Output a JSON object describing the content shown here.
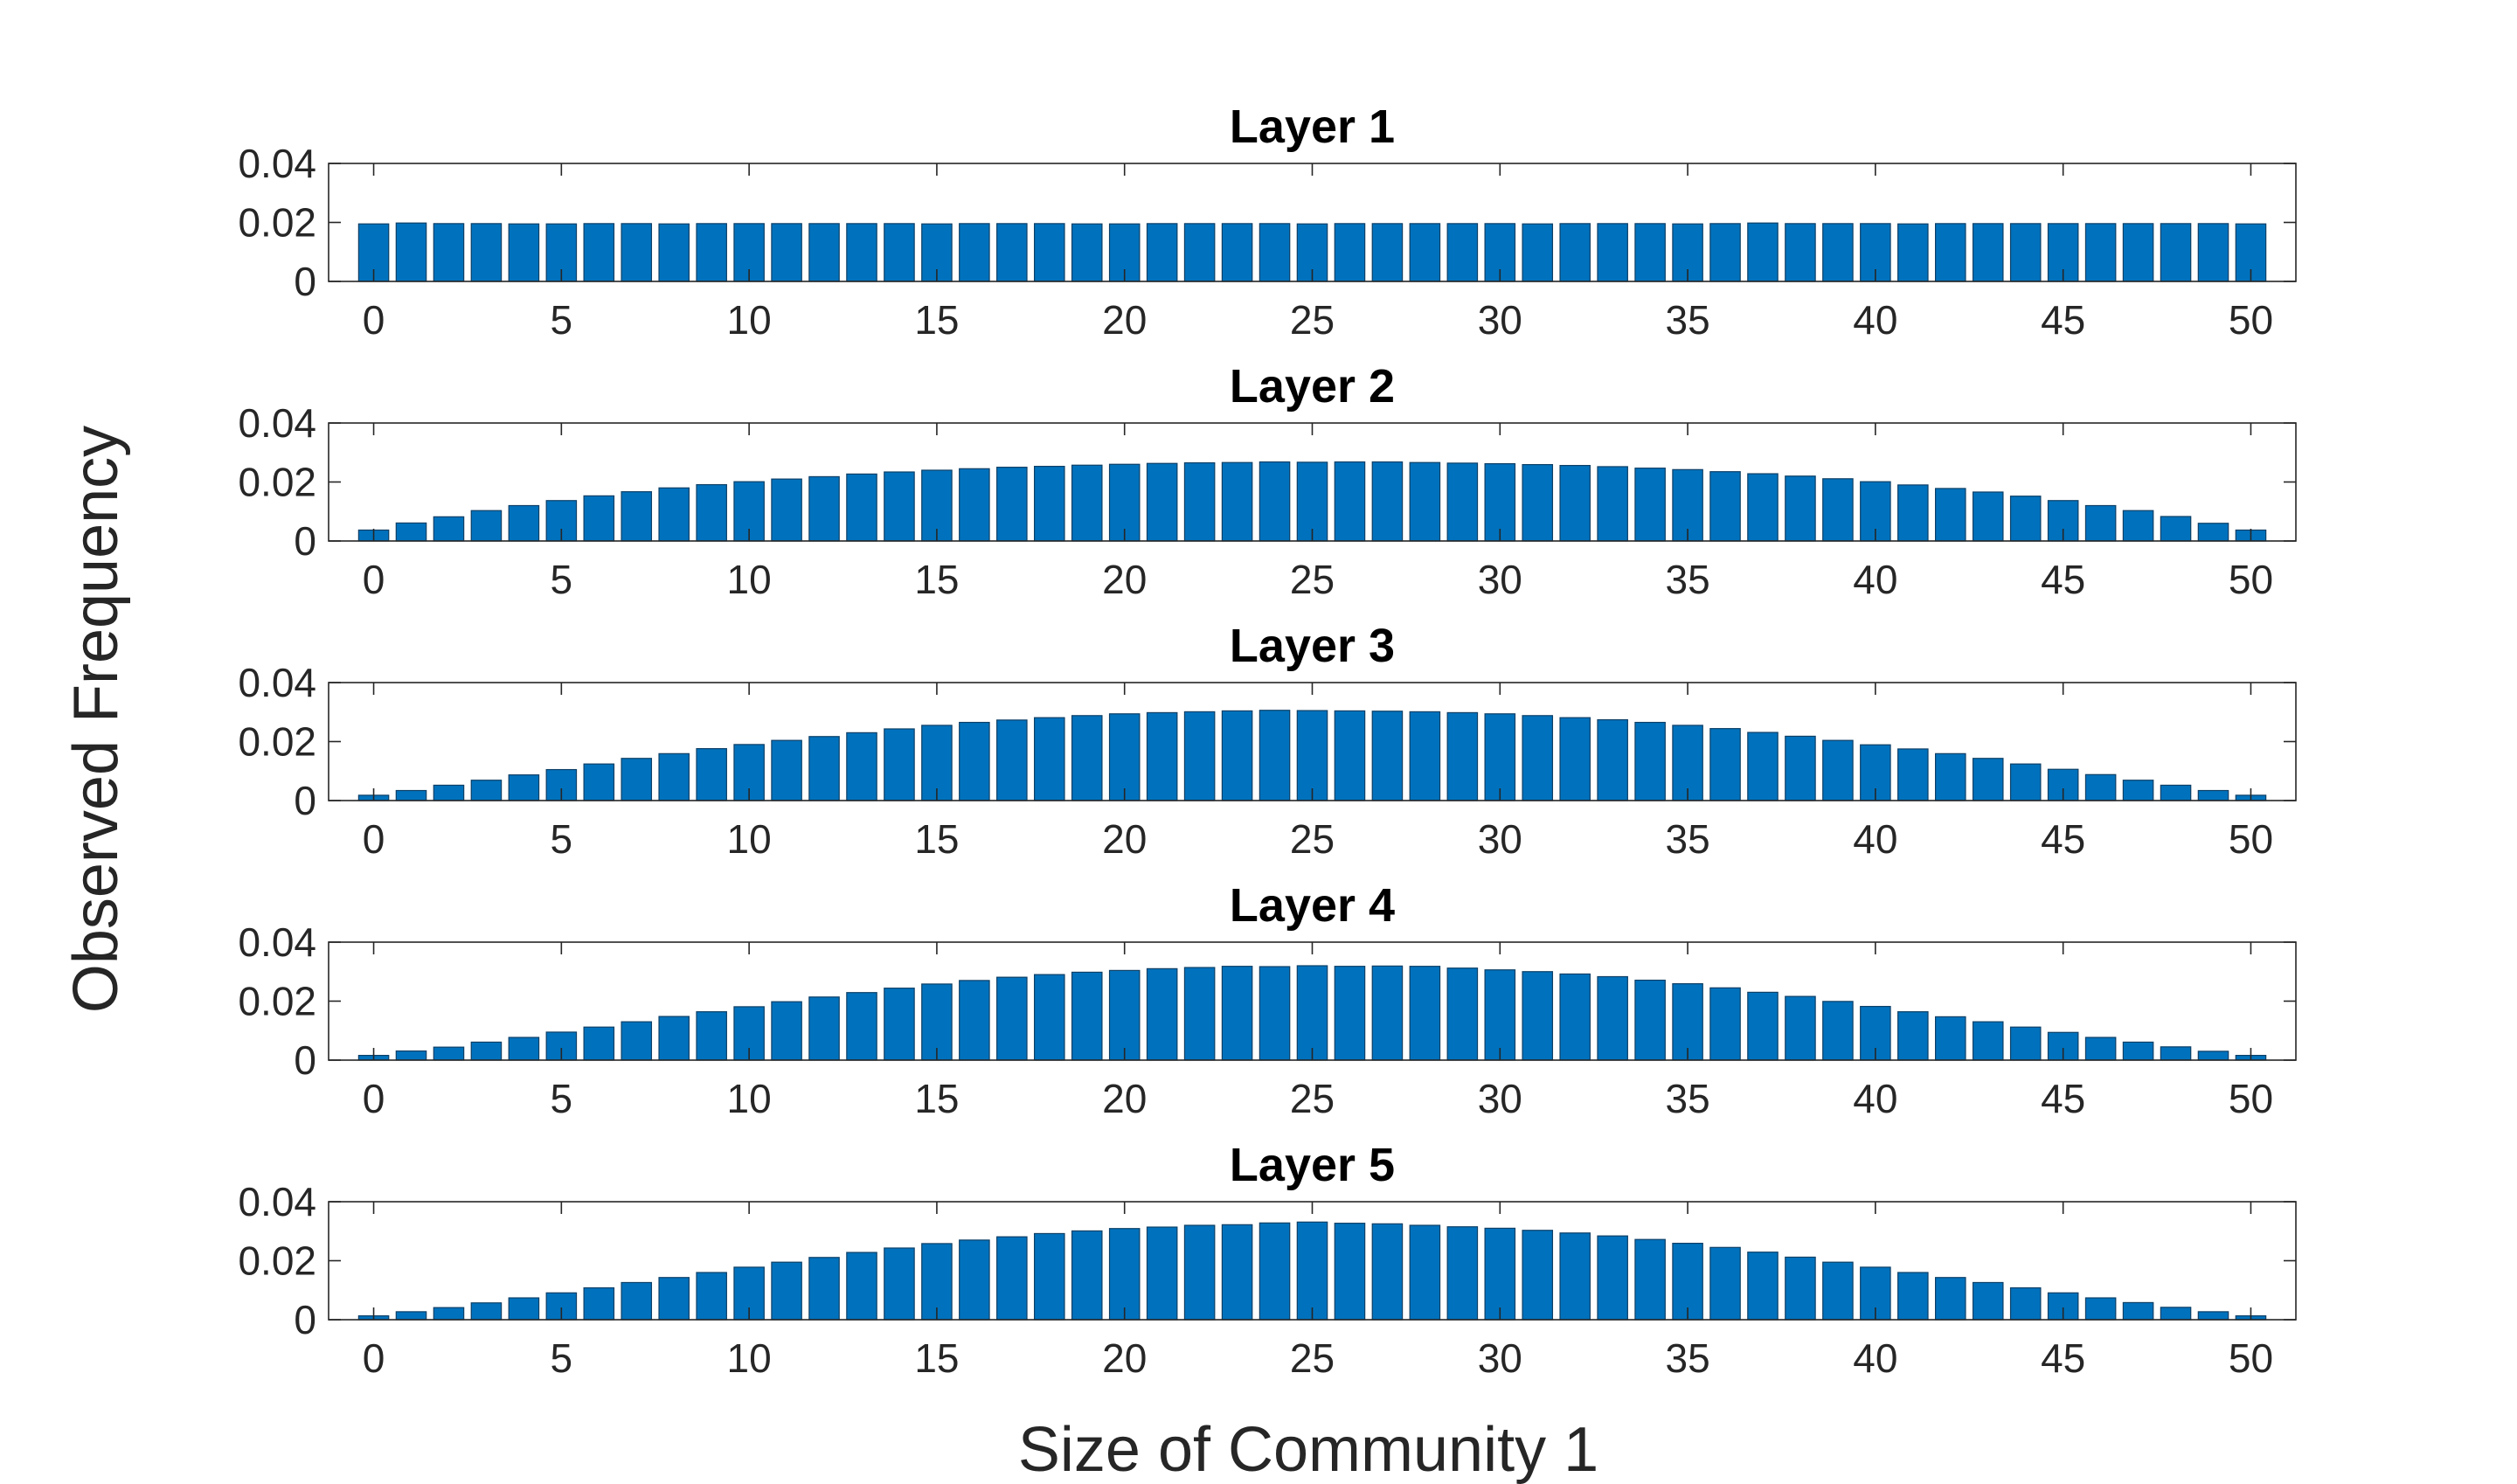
{
  "chart_data": {
    "type": "bar",
    "xlabel": "Size of Community 1",
    "ylabel": "Observed Frequency",
    "colors": {
      "bar": "#0072BD",
      "bar_edge": "#0d3f66",
      "axis": "#262626",
      "grid_tick": "#262626"
    },
    "xlim": [
      -1.2,
      51.2
    ],
    "ylim": [
      0,
      0.04
    ],
    "xticks": [
      0,
      5,
      10,
      15,
      20,
      25,
      30,
      35,
      40,
      45,
      50
    ],
    "yticks": [
      0,
      0.02,
      0.04
    ],
    "ytick_labels": [
      "0",
      "0.02",
      "0.04"
    ],
    "categories": [
      0,
      1,
      2,
      3,
      4,
      5,
      6,
      7,
      8,
      9,
      10,
      11,
      12,
      13,
      14,
      15,
      16,
      17,
      18,
      19,
      20,
      21,
      22,
      23,
      24,
      25,
      26,
      27,
      28,
      29,
      30,
      31,
      32,
      33,
      34,
      35,
      36,
      37,
      38,
      39,
      40,
      41,
      42,
      43,
      44,
      45,
      46,
      47,
      48,
      49,
      50
    ],
    "panels": [
      {
        "title": "Layer 1",
        "values": [
          0.0195,
          0.0198,
          0.0196,
          0.0196,
          0.0195,
          0.0195,
          0.0196,
          0.0196,
          0.0195,
          0.0196,
          0.0196,
          0.0196,
          0.0196,
          0.0196,
          0.0196,
          0.0195,
          0.0196,
          0.0196,
          0.0196,
          0.0195,
          0.0195,
          0.0196,
          0.0196,
          0.0196,
          0.0196,
          0.0195,
          0.0196,
          0.0196,
          0.0196,
          0.0196,
          0.0196,
          0.0195,
          0.0196,
          0.0196,
          0.0196,
          0.0195,
          0.0196,
          0.0198,
          0.0196,
          0.0196,
          0.0196,
          0.0195,
          0.0196,
          0.0196,
          0.0196,
          0.0196,
          0.0196,
          0.0196,
          0.0196,
          0.0196,
          0.0195
        ]
      },
      {
        "title": "Layer 2",
        "values": [
          0.0037,
          0.0061,
          0.0082,
          0.0103,
          0.012,
          0.0137,
          0.0153,
          0.0167,
          0.018,
          0.0191,
          0.0201,
          0.021,
          0.0218,
          0.0227,
          0.0234,
          0.024,
          0.0245,
          0.025,
          0.0253,
          0.0257,
          0.026,
          0.0263,
          0.0265,
          0.0266,
          0.0268,
          0.0267,
          0.0268,
          0.0268,
          0.0266,
          0.0264,
          0.0262,
          0.0259,
          0.0256,
          0.0252,
          0.0247,
          0.0242,
          0.0235,
          0.0228,
          0.022,
          0.0211,
          0.0201,
          0.019,
          0.0178,
          0.0166,
          0.0152,
          0.0137,
          0.012,
          0.0103,
          0.0083,
          0.006,
          0.0037
        ]
      },
      {
        "title": "Layer 3",
        "values": [
          0.0018,
          0.0034,
          0.0052,
          0.0069,
          0.0087,
          0.0105,
          0.0124,
          0.0143,
          0.0159,
          0.0176,
          0.019,
          0.0204,
          0.0217,
          0.023,
          0.0243,
          0.0255,
          0.0265,
          0.0273,
          0.0281,
          0.0288,
          0.0294,
          0.0298,
          0.0301,
          0.0304,
          0.0306,
          0.0305,
          0.0304,
          0.0303,
          0.0301,
          0.0298,
          0.0294,
          0.0288,
          0.0281,
          0.0274,
          0.0265,
          0.0255,
          0.0244,
          0.0231,
          0.0218,
          0.0204,
          0.0189,
          0.0175,
          0.0159,
          0.0143,
          0.0124,
          0.0106,
          0.0088,
          0.0069,
          0.0052,
          0.0034,
          0.0018
        ]
      },
      {
        "title": "Layer 4",
        "values": [
          0.0016,
          0.0031,
          0.0044,
          0.0061,
          0.0077,
          0.0095,
          0.0112,
          0.013,
          0.0148,
          0.0164,
          0.0181,
          0.0198,
          0.0214,
          0.0229,
          0.0244,
          0.0258,
          0.027,
          0.0281,
          0.029,
          0.0298,
          0.0304,
          0.031,
          0.0314,
          0.0318,
          0.0317,
          0.032,
          0.0318,
          0.0319,
          0.0318,
          0.0312,
          0.0306,
          0.03,
          0.0292,
          0.0283,
          0.0271,
          0.0259,
          0.0245,
          0.023,
          0.0216,
          0.0199,
          0.0182,
          0.0164,
          0.0147,
          0.013,
          0.0112,
          0.0094,
          0.0077,
          0.0061,
          0.0045,
          0.003,
          0.0016
        ]
      },
      {
        "title": "Layer 5",
        "values": [
          0.0013,
          0.0027,
          0.0041,
          0.0057,
          0.0074,
          0.0091,
          0.0108,
          0.0126,
          0.0143,
          0.016,
          0.0178,
          0.0195,
          0.0211,
          0.0228,
          0.0243,
          0.0258,
          0.027,
          0.0281,
          0.0292,
          0.0301,
          0.0309,
          0.0314,
          0.032,
          0.0322,
          0.0328,
          0.0331,
          0.0327,
          0.0325,
          0.032,
          0.0315,
          0.031,
          0.0303,
          0.0294,
          0.0284,
          0.0272,
          0.0259,
          0.0245,
          0.0229,
          0.0212,
          0.0195,
          0.0178,
          0.016,
          0.0143,
          0.0126,
          0.0108,
          0.0091,
          0.0074,
          0.0058,
          0.0042,
          0.0027,
          0.0013
        ]
      }
    ]
  }
}
